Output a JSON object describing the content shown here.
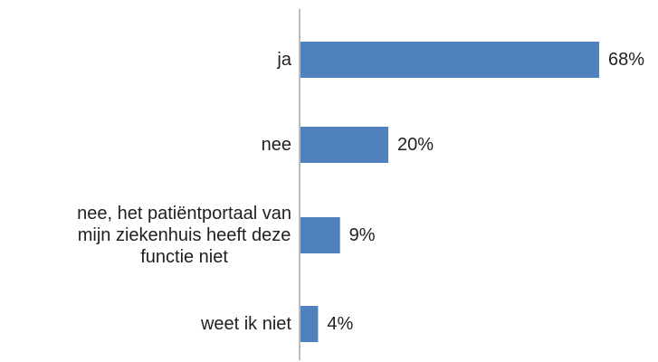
{
  "chart_data": {
    "type": "bar",
    "orientation": "horizontal",
    "categories": [
      "ja",
      "nee",
      "nee, het patiëntportaal van mijn ziekenhuis heeft deze functie niet",
      "weet ik niet"
    ],
    "category_lines": [
      [
        "ja"
      ],
      [
        "nee"
      ],
      [
        "nee, het patiëntportaal van",
        "mijn ziekenhuis heeft deze",
        "functie niet"
      ],
      [
        "weet ik niet"
      ]
    ],
    "values": [
      68,
      20,
      9,
      4
    ],
    "value_labels": [
      "68%",
      "20%",
      "9%",
      "4%"
    ],
    "xlim": [
      0,
      70
    ],
    "title": "",
    "xlabel": "",
    "ylabel": "",
    "grid": false,
    "legend": "none",
    "colors": {
      "bar": "#4f81bd",
      "axis": "#a6a6a6",
      "text": "#1f1f1f"
    }
  }
}
